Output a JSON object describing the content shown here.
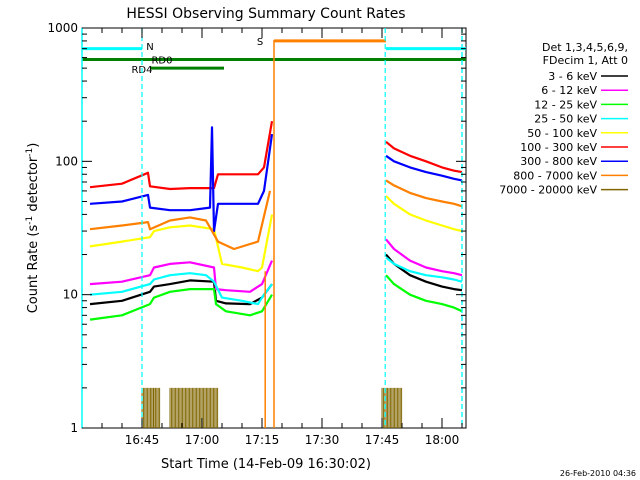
{
  "chart_data": {
    "type": "line",
    "title": "HESSI Observing Summary Count Rates",
    "xlabel": "Start Time (14-Feb-09 16:30:02)",
    "ylabel_main": "Count Rate (s",
    "ylabel_sup1": "-1",
    "ylabel_mid": " detector",
    "ylabel_sup2": "-1",
    "ylabel_end": ")",
    "footer": "26-Feb-2010 04:36",
    "y_scale": "log",
    "ylim": [
      1,
      1000
    ],
    "xlim_minutes": [
      0,
      96
    ],
    "x_ticks": [
      {
        "m": 15,
        "label": "16:45"
      },
      {
        "m": 30,
        "label": "17:00"
      },
      {
        "m": 45,
        "label": "17:15"
      },
      {
        "m": 60,
        "label": "17:30"
      },
      {
        "m": 75,
        "label": "17:45"
      },
      {
        "m": 90,
        "label": "18:00"
      }
    ],
    "y_ticks": [
      {
        "v": 1,
        "label": "1"
      },
      {
        "v": 10,
        "label": "10"
      },
      {
        "v": 100,
        "label": "100"
      },
      {
        "v": 1000,
        "label": "1000"
      }
    ],
    "legend": {
      "header": [
        "Det 1,3,4,5,6,9,",
        "FDecim 1, Att 0"
      ],
      "position": "right"
    },
    "series": [
      {
        "name": "3 - 6 keV",
        "color": "#000000",
        "x": [
          2,
          10,
          17,
          18,
          22,
          27,
          33,
          33.5,
          36,
          42,
          45,
          47.5,
          75,
          76,
          78,
          82,
          86,
          90,
          93,
          95
        ],
        "y": [
          8.5,
          9,
          10.5,
          11.5,
          12,
          12.8,
          12.5,
          9,
          8.6,
          8.5,
          9.5,
          12,
          null,
          20,
          17,
          14,
          12.5,
          11.5,
          11,
          10.8
        ]
      },
      {
        "name": "6 - 12 keV",
        "color": "#ff00ff",
        "x": [
          2,
          10,
          17,
          18,
          22,
          27,
          33,
          33.5,
          36,
          42,
          45,
          47.5,
          75,
          76,
          78,
          82,
          86,
          90,
          93,
          95
        ],
        "y": [
          12,
          12.5,
          14,
          16,
          17,
          17.5,
          16,
          11,
          10.8,
          10.5,
          12,
          18,
          null,
          26,
          22,
          18,
          16,
          15,
          14.5,
          14
        ]
      },
      {
        "name": "12 - 25 keV",
        "color": "#00ff00",
        "x": [
          2,
          10,
          17,
          18,
          22,
          27,
          33,
          33.5,
          36,
          42,
          45,
          47.5,
          75,
          76,
          78,
          82,
          86,
          90,
          93,
          95
        ],
        "y": [
          6.5,
          7,
          8.5,
          9.5,
          10.5,
          11,
          11,
          8.5,
          7.5,
          7,
          7.5,
          10,
          null,
          14,
          12,
          10,
          9,
          8.5,
          8,
          7.5
        ]
      },
      {
        "name": "25 - 50 keV",
        "color": "#00ffff",
        "x": [
          2,
          10,
          17,
          18,
          22,
          27,
          31,
          33,
          35,
          40,
          44,
          45,
          47.5,
          75,
          76,
          78,
          82,
          86,
          90,
          93,
          95
        ],
        "y": [
          10,
          10.5,
          12,
          13,
          14,
          14.5,
          14,
          12.5,
          9.5,
          9,
          8.5,
          9.5,
          12,
          null,
          19,
          17,
          15,
          14,
          13.5,
          13,
          12.5
        ]
      },
      {
        "name": "50 - 100 keV",
        "color": "#ffff00",
        "x": [
          2,
          10,
          17,
          18,
          22,
          27,
          33,
          35,
          40,
          44,
          45,
          47.5,
          75,
          76,
          78,
          82,
          86,
          90,
          93,
          95
        ],
        "y": [
          23,
          25,
          27,
          30,
          32,
          33,
          31,
          17,
          16,
          15,
          16,
          40,
          null,
          55,
          48,
          40,
          36,
          33,
          31,
          30
        ]
      },
      {
        "name": "100 - 300 keV",
        "color": "#ff0000",
        "x": [
          2,
          10,
          16.5,
          17,
          22,
          27,
          32,
          33,
          34,
          40,
          44,
          45.5,
          47.5,
          48,
          75,
          76,
          78,
          82,
          86,
          90,
          93,
          95
        ],
        "y": [
          64,
          68,
          82,
          65,
          62,
          63,
          63,
          63,
          80,
          80,
          80,
          90,
          200,
          null,
          null,
          140,
          125,
          110,
          100,
          90,
          85,
          83
        ]
      },
      {
        "name": "300 - 800 keV",
        "color": "#0000ff",
        "x": [
          2,
          10,
          16.5,
          17,
          22,
          27,
          32,
          32.5,
          33,
          34,
          35,
          40,
          44,
          45.5,
          47.5,
          48,
          75,
          76,
          78,
          82,
          86,
          90,
          93,
          95
        ],
        "y": [
          48,
          50,
          56,
          45,
          43,
          43,
          45,
          180,
          30,
          48,
          48,
          48,
          48,
          60,
          160,
          null,
          null,
          110,
          100,
          90,
          83,
          78,
          74,
          72
        ]
      },
      {
        "name": "800 - 7000 keV",
        "color": "#ff8000",
        "x": [
          2,
          10,
          16.5,
          17,
          22,
          27,
          31,
          34,
          38,
          44,
          47,
          48,
          75,
          76,
          78,
          82,
          86,
          90,
          93,
          95
        ],
        "y": [
          31,
          33,
          35,
          31,
          36,
          38,
          36,
          25,
          22,
          25,
          60,
          null,
          null,
          72,
          66,
          58,
          53,
          50,
          48,
          46
        ]
      },
      {
        "name": "7000 - 20000 keV",
        "color": "#806600",
        "x": [
          15,
          20,
          22,
          27,
          30,
          32,
          33,
          75,
          78,
          80
        ],
        "y": [
          2,
          2,
          2,
          2,
          2,
          2,
          2,
          2,
          2,
          2
        ]
      }
    ],
    "markers": [
      {
        "kind": "night",
        "label": "N",
        "m": 15
      },
      {
        "kind": "night",
        "label": "",
        "m": 75.8
      },
      {
        "kind": "saa",
        "label": "S",
        "m": 48
      }
    ],
    "bars": [
      {
        "label": "",
        "color": "#00ffff",
        "segments": [
          [
            0,
            15
          ],
          [
            76,
            96
          ]
        ],
        "level": 700
      },
      {
        "label": "",
        "color": "#ff8000",
        "segments": [
          [
            48,
            76
          ]
        ],
        "level": 800
      },
      {
        "label": "",
        "color": "#008000",
        "segments": [
          [
            0,
            96
          ]
        ],
        "level": 580
      },
      {
        "label": "RD4",
        "color": "#008000",
        "segments": [
          [
            17,
            35.5
          ]
        ],
        "level": 500
      },
      {
        "label": "RD0",
        "color": "#008000",
        "segments": [],
        "level": 580
      }
    ]
  }
}
